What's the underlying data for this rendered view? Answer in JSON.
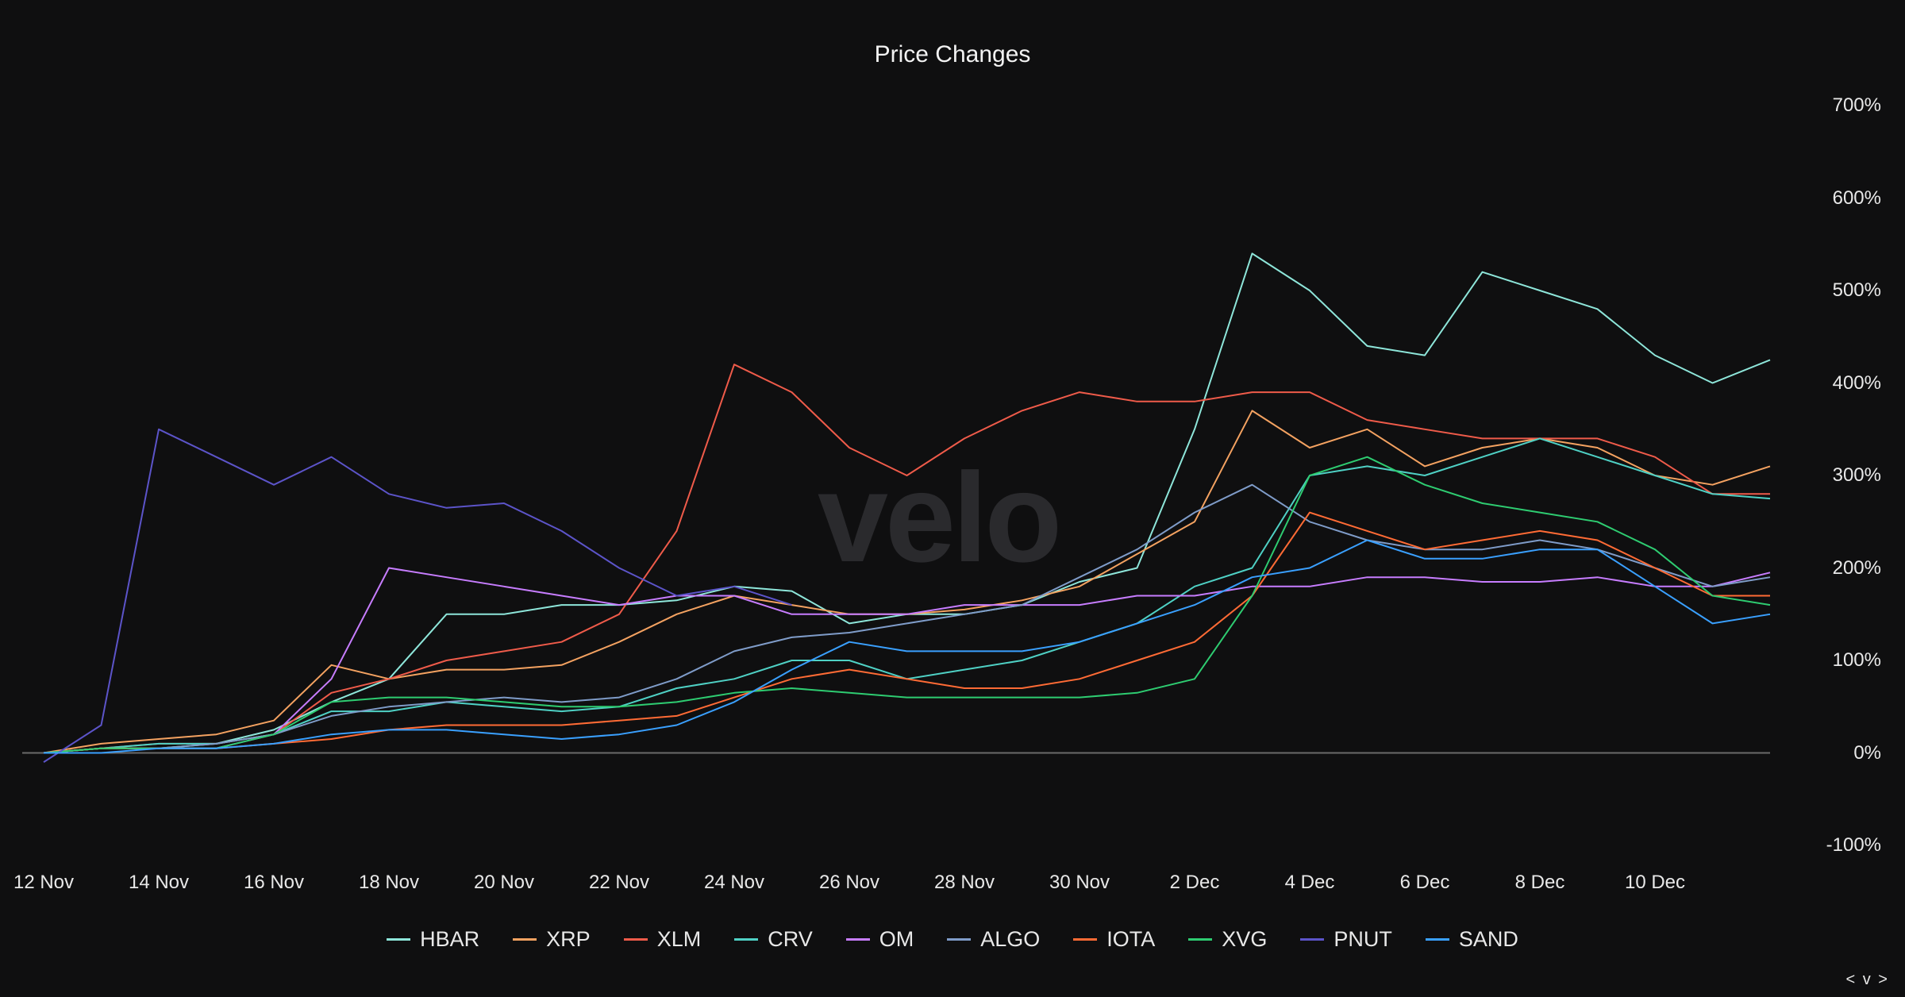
{
  "chart_data": {
    "type": "line",
    "title": "Price Changes",
    "watermark": "velo",
    "x": [
      "12 Nov",
      "13 Nov",
      "14 Nov",
      "15 Nov",
      "16 Nov",
      "17 Nov",
      "18 Nov",
      "19 Nov",
      "20 Nov",
      "21 Nov",
      "22 Nov",
      "23 Nov",
      "24 Nov",
      "25 Nov",
      "26 Nov",
      "27 Nov",
      "28 Nov",
      "29 Nov",
      "30 Nov",
      "1 Dec",
      "2 Dec",
      "3 Dec",
      "4 Dec",
      "5 Dec",
      "6 Dec",
      "7 Dec",
      "8 Dec",
      "9 Dec",
      "10 Dec",
      "11 Dec",
      "12 Dec"
    ],
    "x_tick_labels": [
      "12 Nov",
      "14 Nov",
      "16 Nov",
      "18 Nov",
      "20 Nov",
      "22 Nov",
      "24 Nov",
      "26 Nov",
      "28 Nov",
      "30 Nov",
      "2 Dec",
      "4 Dec",
      "6 Dec",
      "8 Dec",
      "10 Dec"
    ],
    "y_tick_labels": [
      "700%",
      "600%",
      "500%",
      "400%",
      "300%",
      "200%",
      "100%",
      "0%",
      "-100%"
    ],
    "ylim": [
      -100,
      700
    ],
    "grid": false,
    "legend_position": "bottom",
    "series": [
      {
        "name": "HBAR",
        "color": "#8ee6da",
        "values": [
          0,
          5,
          5,
          10,
          25,
          55,
          80,
          150,
          150,
          160,
          160,
          165,
          180,
          175,
          140,
          150,
          150,
          160,
          185,
          200,
          350,
          540,
          500,
          440,
          430,
          520,
          500,
          480,
          430,
          400,
          425
        ]
      },
      {
        "name": "XRP",
        "color": "#f4a261",
        "values": [
          0,
          10,
          15,
          20,
          35,
          95,
          80,
          90,
          90,
          95,
          120,
          150,
          170,
          160,
          150,
          150,
          155,
          165,
          180,
          215,
          250,
          370,
          330,
          350,
          310,
          330,
          340,
          330,
          300,
          290,
          310
        ]
      },
      {
        "name": "XLM",
        "color": "#ef5b4a",
        "values": [
          0,
          5,
          10,
          10,
          20,
          65,
          80,
          100,
          110,
          120,
          150,
          240,
          420,
          390,
          330,
          300,
          340,
          370,
          390,
          380,
          380,
          390,
          390,
          360,
          350,
          340,
          340,
          340,
          320,
          280,
          280
        ]
      },
      {
        "name": "CRV",
        "color": "#4fd1c5",
        "values": [
          0,
          5,
          10,
          10,
          20,
          45,
          45,
          55,
          50,
          45,
          50,
          70,
          80,
          100,
          100,
          80,
          90,
          100,
          120,
          140,
          180,
          200,
          300,
          310,
          300,
          320,
          340,
          320,
          300,
          280,
          275
        ]
      },
      {
        "name": "OM",
        "color": "#c77dff",
        "values": [
          0,
          5,
          5,
          5,
          20,
          80,
          200,
          190,
          180,
          170,
          160,
          170,
          170,
          150,
          150,
          150,
          160,
          160,
          160,
          170,
          170,
          180,
          180,
          190,
          190,
          185,
          185,
          190,
          180,
          180,
          195
        ]
      },
      {
        "name": "ALGO",
        "color": "#7f9cc9",
        "values": [
          0,
          5,
          5,
          10,
          20,
          40,
          50,
          55,
          60,
          55,
          60,
          80,
          110,
          125,
          130,
          140,
          150,
          160,
          190,
          220,
          260,
          290,
          250,
          230,
          220,
          220,
          230,
          220,
          200,
          180,
          190
        ]
      },
      {
        "name": "IOTA",
        "color": "#ff6b35",
        "values": [
          0,
          5,
          5,
          5,
          10,
          15,
          25,
          30,
          30,
          30,
          35,
          40,
          60,
          80,
          90,
          80,
          70,
          70,
          80,
          100,
          120,
          170,
          260,
          240,
          220,
          230,
          240,
          230,
          200,
          170,
          170
        ]
      },
      {
        "name": "XVG",
        "color": "#2ecc71",
        "values": [
          0,
          5,
          5,
          5,
          20,
          55,
          60,
          60,
          55,
          50,
          50,
          55,
          65,
          70,
          65,
          60,
          60,
          60,
          60,
          65,
          80,
          170,
          300,
          320,
          290,
          270,
          260,
          250,
          220,
          170,
          160
        ]
      },
      {
        "name": "PNUT",
        "color": "#5c54c9",
        "values": [
          -10,
          30,
          350,
          320,
          290,
          320,
          280,
          265,
          270,
          240,
          200,
          170,
          180,
          160,
          null,
          null,
          null,
          null,
          null,
          null,
          null,
          null,
          null,
          null,
          null,
          null,
          null,
          null,
          null,
          null,
          null
        ]
      },
      {
        "name": "SAND",
        "color": "#3aa0ff",
        "values": [
          0,
          0,
          5,
          5,
          10,
          20,
          25,
          25,
          20,
          15,
          20,
          30,
          55,
          90,
          120,
          110,
          110,
          110,
          120,
          140,
          160,
          190,
          200,
          230,
          210,
          210,
          220,
          220,
          180,
          140,
          150
        ]
      }
    ]
  },
  "nav": {
    "arrows": "< v >"
  }
}
